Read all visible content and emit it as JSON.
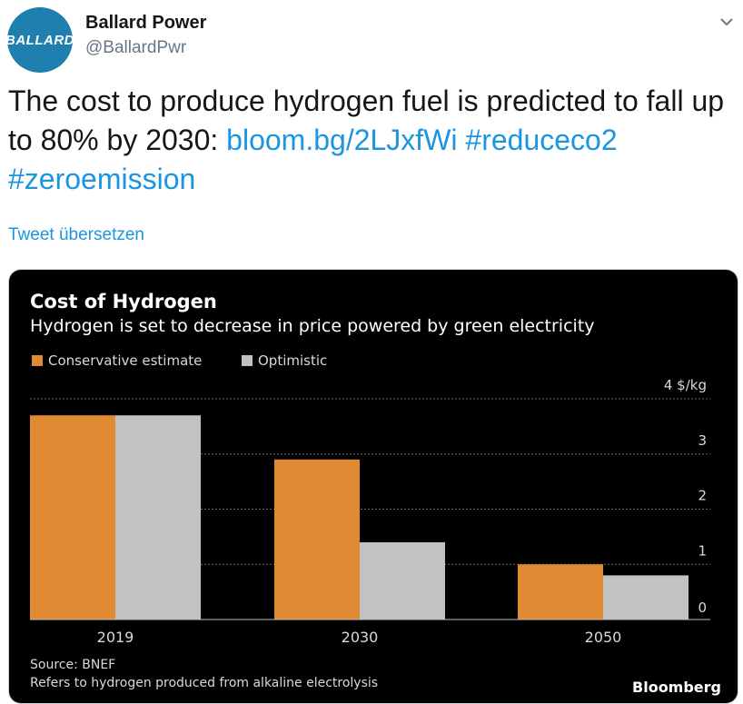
{
  "tweet": {
    "avatar_text": "BALLARD",
    "display_name": "Ballard Power",
    "handle": "@BallardPwr",
    "text_plain": "The cost to produce hydrogen fuel is predicted to fall up to 80% by 2030: ",
    "link_url": "bloom.bg/2LJxfWi",
    "hashtag_1": "#reduceco2",
    "hashtag_2": "#zeroemission",
    "translate_label": "Tweet übersetzen",
    "icons": {
      "menu": "chevron-down-icon"
    },
    "colors": {
      "link": "#1b95e0",
      "avatar_bg": "#1f7fae"
    }
  },
  "chart_data": {
    "type": "bar",
    "title": "Cost of Hydrogen",
    "subtitle": "Hydrogen is set to decrease in price powered by green electricity",
    "categories": [
      "2019",
      "2030",
      "2050"
    ],
    "series": [
      {
        "name": "Conservative estimate",
        "color": "#e08a33",
        "values": [
          3.7,
          2.9,
          1.0
        ]
      },
      {
        "name": "Optimistic",
        "color": "#c2c2c2",
        "values": [
          3.7,
          1.4,
          0.8
        ]
      }
    ],
    "ylim": [
      0,
      4
    ],
    "yticks": [
      0,
      1,
      2,
      3,
      4
    ],
    "ytick_labels": [
      "0",
      "1",
      "2",
      "3",
      "4 $/kg"
    ],
    "grid": true,
    "legend": "top-left",
    "source": "Source: BNEF",
    "note": "Refers to hydrogen produced from alkaline electrolysis",
    "brand": "Bloomberg"
  }
}
